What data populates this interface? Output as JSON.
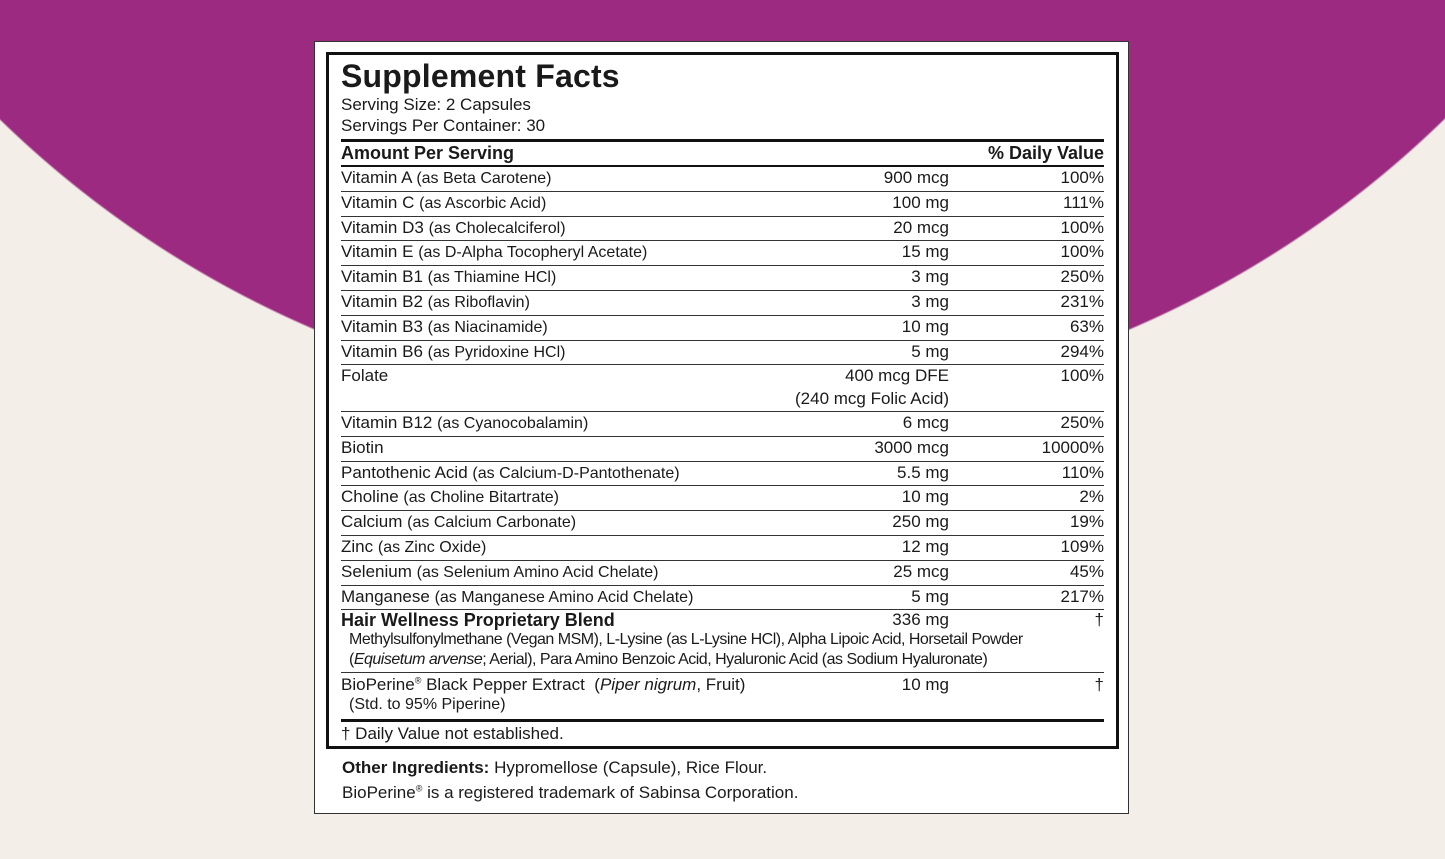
{
  "title": "Supplement Facts",
  "serving_size": "Serving Size: 2 Capsules",
  "servings_per_container": "Servings Per Container: 30",
  "header": {
    "amount": "Amount Per Serving",
    "dv": "% Daily Value"
  },
  "rows": [
    {
      "name": "Vitamin A",
      "source": "(as Beta Carotene)",
      "amount": "900 mcg",
      "dv": "100%"
    },
    {
      "name": "Vitamin C",
      "source": "(as Ascorbic Acid)",
      "amount": "100 mg",
      "dv": "111%"
    },
    {
      "name": "Vitamin D3",
      "source": "(as Cholecalciferol)",
      "amount": "20 mcg",
      "dv": "100%"
    },
    {
      "name": "Vitamin E",
      "source": "(as D-Alpha Tocopheryl Acetate)",
      "amount": "15 mg",
      "dv": "100%"
    },
    {
      "name": "Vitamin B1",
      "source": "(as Thiamine HCl)",
      "amount": "3 mg",
      "dv": "250%"
    },
    {
      "name": "Vitamin B2",
      "source": "(as Riboflavin)",
      "amount": "3 mg",
      "dv": "231%"
    },
    {
      "name": "Vitamin B3",
      "source": "(as Niacinamide)",
      "amount": "10 mg",
      "dv": "63%"
    },
    {
      "name": "Vitamin B6",
      "source": "(as Pyridoxine HCl)",
      "amount": "5 mg",
      "dv": "294%"
    },
    {
      "name": "Folate",
      "source": "",
      "amount": "400 mcg DFE",
      "amount2": "(240 mcg Folic Acid)",
      "dv": "100%"
    },
    {
      "name": "Vitamin B12",
      "source": "(as Cyanocobalamin)",
      "amount": "6 mcg",
      "dv": "250%"
    },
    {
      "name": "Biotin",
      "source": "",
      "amount": "3000 mcg",
      "dv": "10000%"
    },
    {
      "name": "Pantothenic Acid",
      "source": "(as Calcium-D-Pantothenate)",
      "amount": "5.5 mg",
      "dv": "110%"
    },
    {
      "name": "Choline",
      "source": "(as Choline Bitartrate)",
      "amount": "10 mg",
      "dv": "2%"
    },
    {
      "name": "Calcium",
      "source": "(as Calcium Carbonate)",
      "amount": "250 mg",
      "dv": "19%"
    },
    {
      "name": "Zinc",
      "source": "(as Zinc Oxide)",
      "amount": "12 mg",
      "dv": "109%"
    },
    {
      "name": "Selenium",
      "source": "(as Selenium Amino Acid Chelate)",
      "amount": "25 mcg",
      "dv": "45%"
    },
    {
      "name": "Manganese",
      "source": "(as Manganese Amino Acid Chelate)",
      "amount": "5 mg",
      "dv": "217%"
    }
  ],
  "blend": {
    "name": "Hair Wellness Proprietary Blend",
    "amount": "336 mg",
    "dv": "†",
    "line1": "Methylsulfonylmethane (Vegan MSM), L-Lysine (as L-Lysine HCl), Alpha Lipoic Acid, Horsetail Powder",
    "line2_open": "(",
    "line2_italic": "Equisetum arvense",
    "line2_rest": "; Aerial), Para Amino Benzoic Acid, Hyaluronic Acid (as Sodium Hyaluronate)"
  },
  "bioperine": {
    "name": "BioPerine",
    "reg": "®",
    "name_rest": " Black Pepper Extract",
    "src_open": "(",
    "src_italic": "Piper nigrum",
    "src_rest": ", Fruit)",
    "amount": "10 mg",
    "dv": "†",
    "line2": "(Std. to 95% Piperine)"
  },
  "footnote": "† Daily Value not established.",
  "other": {
    "label": "Other Ingredients:",
    "text": " Hypromellose (Capsule), Rice Flour."
  },
  "trademark": {
    "name": "BioPerine",
    "reg": "®",
    "text": " is a registered trademark of Sabinsa Corporation."
  },
  "colors": {
    "background_arc": "#9b2a80",
    "background": "#f3efe8"
  }
}
